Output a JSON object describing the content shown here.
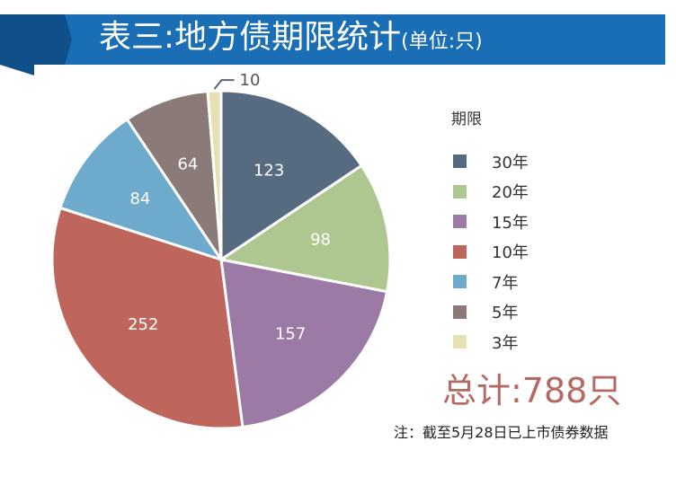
{
  "header": {
    "title": "表三:地方债期限统计",
    "unit": "(单位:只)"
  },
  "colors": {
    "banner": "#1a6eb5",
    "banner_dark": "#0f4f8a",
    "label_dark": "#ffffff",
    "total": "#b46a63"
  },
  "chart_data": {
    "type": "pie",
    "title": "表三:地方债期限统计(单位:只)",
    "legend_title": "期限",
    "legend_position": "right",
    "slices": [
      {
        "label": "30年",
        "value": 123,
        "color": "#566a80"
      },
      {
        "label": "20年",
        "value": 98,
        "color": "#aec690"
      },
      {
        "label": "15年",
        "value": 157,
        "color": "#9b7aa5"
      },
      {
        "label": "10年",
        "value": 252,
        "color": "#bf665c"
      },
      {
        "label": "7年",
        "value": 84,
        "color": "#6eaacb"
      },
      {
        "label": "5年",
        "value": 64,
        "color": "#8a7a78"
      },
      {
        "label": "3年",
        "value": 10,
        "color": "#e6e0b2"
      }
    ]
  },
  "summary": {
    "total": "总计:788只",
    "note": "注：截至5月28日已上市债券数据"
  }
}
